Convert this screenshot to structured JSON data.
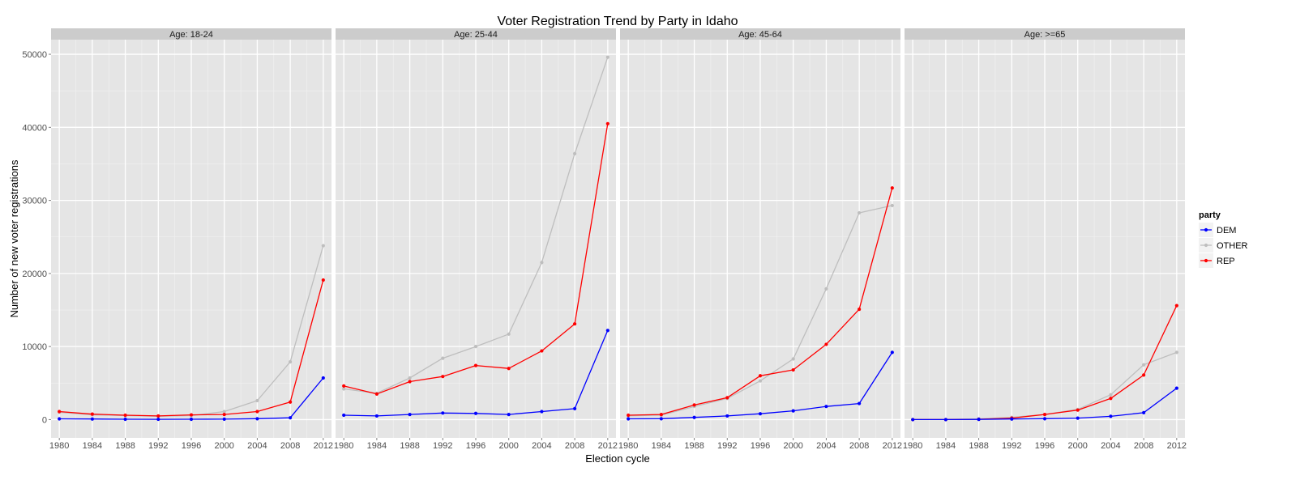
{
  "chart_data": {
    "type": "line",
    "title": "Voter Registration Trend by Party in Idaho",
    "xlabel": "Election cycle",
    "ylabel": "Number of new voter registrations",
    "x": [
      1980,
      1984,
      1988,
      1992,
      1996,
      2000,
      2004,
      2008,
      2012
    ],
    "x_ticks": [
      "1980",
      "1984",
      "1988",
      "1992",
      "1996",
      "2000",
      "2004",
      "2008",
      "2012"
    ],
    "xlim": [
      1979,
      2013
    ],
    "ylim": [
      -2500,
      52000
    ],
    "y_ticks": [
      0,
      10000,
      20000,
      30000,
      40000,
      50000
    ],
    "y_tick_labels": [
      "0",
      "10000",
      "20000",
      "30000",
      "40000",
      "50000"
    ],
    "grid": true,
    "legend": {
      "title": "party",
      "position": "right",
      "entries": [
        {
          "name": "DEM",
          "color": "#0000ff"
        },
        {
          "name": "OTHER",
          "color": "#bebebe"
        },
        {
          "name": "REP",
          "color": "#ff0000"
        }
      ]
    },
    "facets": [
      {
        "label": "Age: 18-24",
        "series": [
          {
            "name": "OTHER",
            "values": [
              1000,
              650,
              550,
              450,
              550,
              1100,
              2600,
              7900,
              23800
            ]
          },
          {
            "name": "REP",
            "values": [
              1100,
              750,
              600,
              500,
              650,
              700,
              1100,
              2400,
              19100
            ]
          },
          {
            "name": "DEM",
            "values": [
              100,
              80,
              50,
              40,
              50,
              60,
              120,
              250,
              5700
            ]
          }
        ]
      },
      {
        "label": "Age: 25-44",
        "series": [
          {
            "name": "OTHER",
            "values": [
              4200,
              3600,
              5700,
              8400,
              10000,
              11700,
              21500,
              36400,
              49600
            ]
          },
          {
            "name": "REP",
            "values": [
              4600,
              3500,
              5200,
              5900,
              7400,
              7000,
              9400,
              13100,
              40500
            ]
          },
          {
            "name": "DEM",
            "values": [
              600,
              500,
              700,
              900,
              850,
              700,
              1100,
              1500,
              12200
            ]
          }
        ]
      },
      {
        "label": "Age: 45-64",
        "series": [
          {
            "name": "OTHER",
            "values": [
              500,
              600,
              1800,
              2900,
              5300,
              8300,
              17900,
              28300,
              29300
            ]
          },
          {
            "name": "REP",
            "values": [
              600,
              700,
              2000,
              3000,
              6000,
              6800,
              10300,
              15100,
              31700
            ]
          },
          {
            "name": "DEM",
            "values": [
              100,
              120,
              300,
              500,
              800,
              1200,
              1800,
              2200,
              9200
            ]
          }
        ]
      },
      {
        "label": "Age: >=65",
        "series": [
          {
            "name": "OTHER",
            "values": [
              0,
              0,
              100,
              300,
              700,
              1400,
              3400,
              7500,
              9200
            ]
          },
          {
            "name": "REP",
            "values": [
              0,
              0,
              50,
              200,
              700,
              1300,
              2900,
              6100,
              15600
            ]
          },
          {
            "name": "DEM",
            "values": [
              0,
              0,
              30,
              80,
              120,
              200,
              450,
              950,
              4300
            ]
          }
        ]
      }
    ]
  }
}
